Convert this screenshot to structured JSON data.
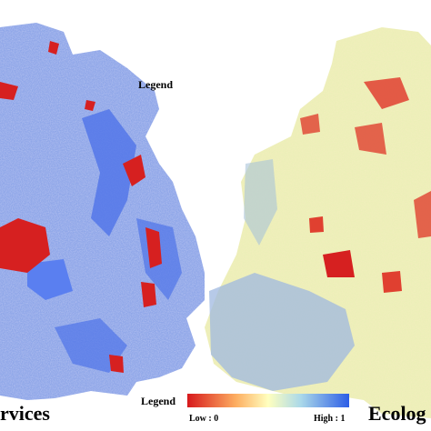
{
  "left_map": {
    "title": "rvices"
  },
  "right_map": {
    "title": "Ecolog"
  },
  "top_legend": {
    "title": "Legend"
  },
  "legend": {
    "title": "Legend",
    "low": "Low : 0",
    "high": "High : 1"
  }
}
